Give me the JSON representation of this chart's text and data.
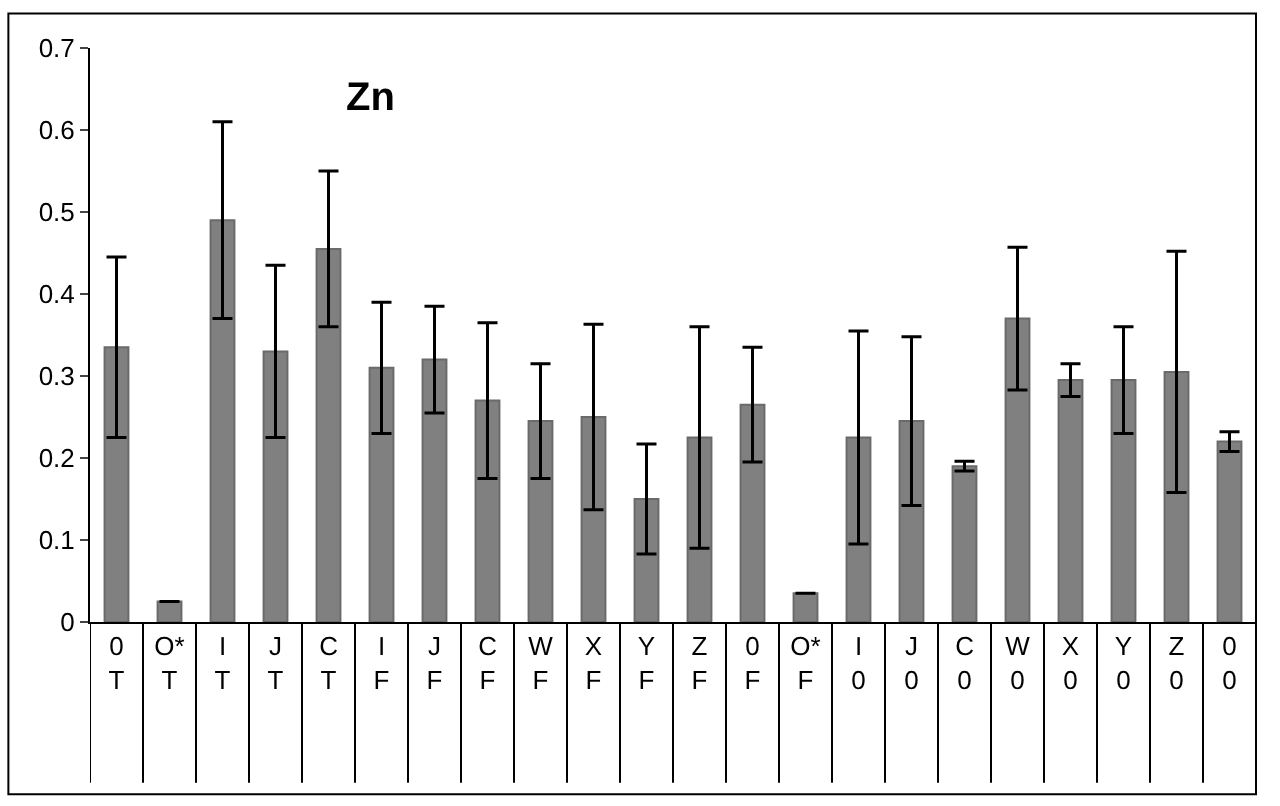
{
  "chart_data": {
    "type": "bar",
    "title": "Zn",
    "categories": [
      "0\nT",
      "O*\nT",
      "I\nT",
      "J\nT",
      "C\nT",
      "I\nF",
      "J\nF",
      "C\nF",
      "W\nF",
      "X\nF",
      "Y\nF",
      "Z\nF",
      "0\nF",
      "O*\nF",
      "I\n0",
      "J\n0",
      "C\n0",
      "W\n0",
      "X\n0",
      "Y\n0",
      "Z\n0",
      "0\n0"
    ],
    "values": [
      0.335,
      0.025,
      0.49,
      0.33,
      0.455,
      0.31,
      0.32,
      0.27,
      0.245,
      0.25,
      0.15,
      0.225,
      0.265,
      0.035,
      0.225,
      0.245,
      0.19,
      0.37,
      0.295,
      0.295,
      0.305,
      0.22
    ],
    "errors": [
      0.11,
      null,
      0.12,
      0.105,
      0.095,
      0.08,
      0.065,
      0.095,
      0.07,
      0.113,
      0.067,
      0.135,
      0.07,
      null,
      0.13,
      0.103,
      0.006,
      0.087,
      0.02,
      0.065,
      0.147,
      0.012
    ],
    "color": "#808080",
    "ylim": [
      0,
      0.7
    ],
    "yticks": [
      0,
      0.1,
      0.2,
      0.3,
      0.4,
      0.5,
      0.6,
      0.7
    ],
    "grid": false
  }
}
